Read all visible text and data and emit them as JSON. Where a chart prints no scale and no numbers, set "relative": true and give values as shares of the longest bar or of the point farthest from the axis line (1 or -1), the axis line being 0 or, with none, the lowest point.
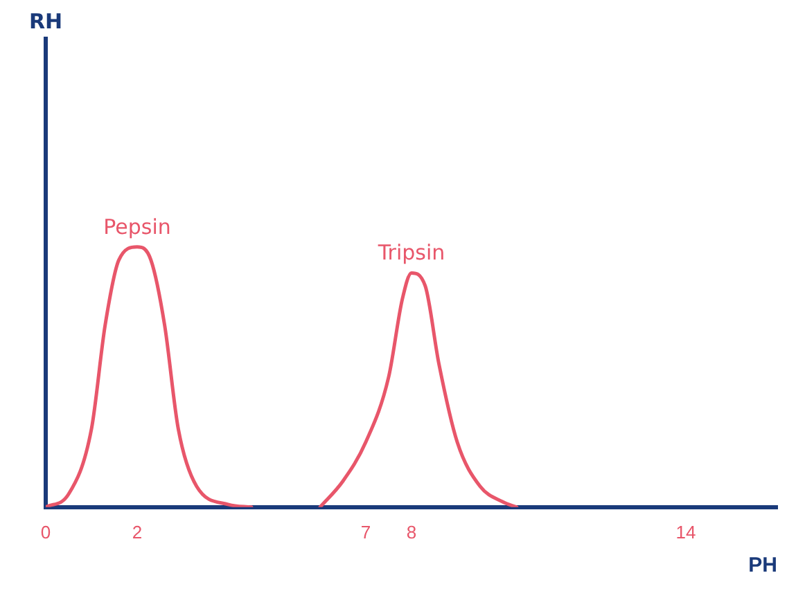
{
  "chart_data": {
    "type": "line",
    "xlabel": "PH",
    "annotations": [
      "RH"
    ],
    "relative": true,
    "marker": "none",
    "legend": false,
    "xlim": [
      0,
      16
    ],
    "xticks": [
      0,
      2,
      7,
      8,
      14
    ],
    "series": [
      {
        "name": "Pepsin",
        "color": "#e8566a",
        "x": [
          0,
          0.5,
          1,
          1.3,
          1.6,
          2,
          2.3,
          2.6,
          2.9,
          3.3,
          4,
          4.5
        ],
        "values": [
          0,
          0.05,
          0.3,
          0.7,
          0.95,
          1,
          0.95,
          0.7,
          0.3,
          0.08,
          0.01,
          0
        ]
      },
      {
        "name": "Tripsin",
        "color": "#e8566a",
        "x": [
          6,
          6.5,
          7,
          7.5,
          7.8,
          8,
          8.3,
          8.6,
          9,
          9.5,
          10,
          10.3
        ],
        "values": [
          0,
          0.1,
          0.25,
          0.5,
          0.8,
          0.9,
          0.85,
          0.55,
          0.25,
          0.08,
          0.02,
          0
        ]
      }
    ]
  }
}
